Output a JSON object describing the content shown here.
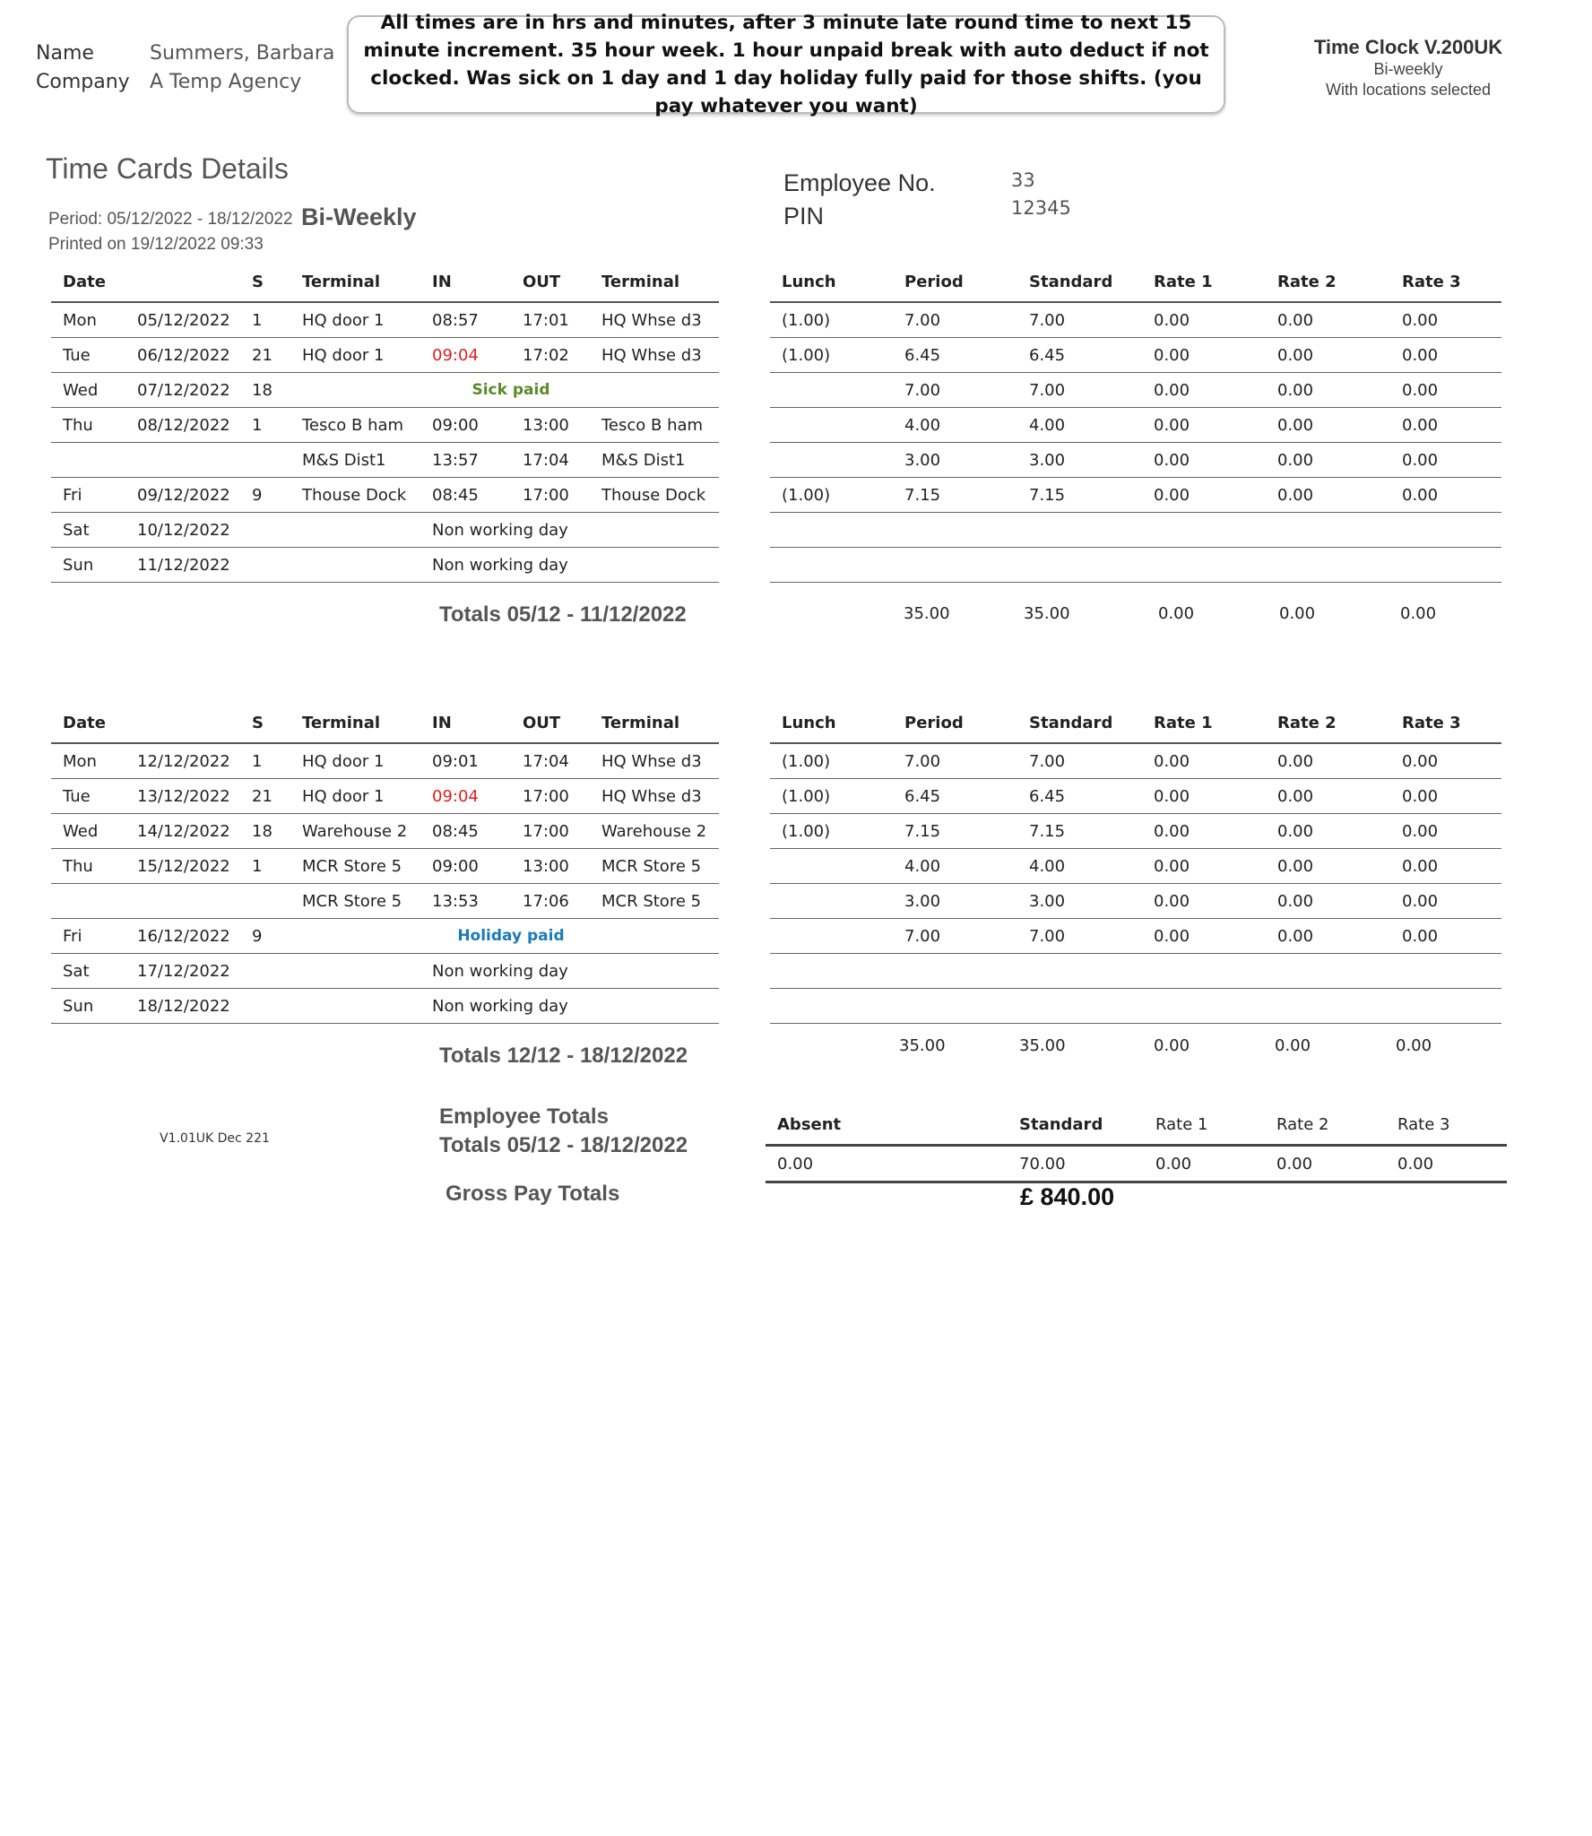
{
  "employee": {
    "name_label": "Name",
    "name": "Summers, Barbara",
    "company_label": "Company",
    "company": "A Temp Agency",
    "employee_no_label": "Employee No.",
    "employee_no": "33",
    "pin_label": "PIN",
    "pin": "12345"
  },
  "note": "All times are in hrs and minutes, after 3 minute late round time to next 15 minute increment. 35 hour week. 1 hour unpaid break with auto deduct if not clocked. Was sick on 1 day and 1 day holiday fully paid for those shifts. (you pay whatever you want)",
  "product": {
    "title": "Time Clock V.200UK",
    "mode": "Bi-weekly",
    "locations": "With locations selected"
  },
  "report": {
    "title": "Time Cards Details",
    "period": "Period: 05/12/2022 - 18/12/2022",
    "frequency": "Bi-Weekly",
    "printed": "Printed on 19/12/2022 09:33",
    "version": "V1.01UK Dec 221"
  },
  "colors": {
    "late": "#e02020",
    "sick": "#5a8a2a",
    "holiday": "#1a7ab8"
  },
  "left_headers": [
    "Date",
    "",
    "S",
    "Terminal",
    "IN",
    "OUT",
    "Terminal"
  ],
  "right_headers": [
    "Lunch",
    "Period",
    "Standard",
    "Rate 1",
    "Rate 2",
    "Rate 3"
  ],
  "weeks": [
    {
      "rows": [
        {
          "day": "Mon",
          "date": "05/12/2022",
          "s": "1",
          "t_in": "HQ door 1",
          "in": "08:57",
          "out": "17:01",
          "t_out": "HQ Whse d3",
          "lunch": "(1.00)",
          "period": "7.00",
          "standard": "7.00",
          "r1": "0.00",
          "r2": "0.00",
          "r3": "0.00"
        },
        {
          "day": "Tue",
          "date": "06/12/2022",
          "s": "21",
          "t_in": "HQ door 1",
          "in": "09:04",
          "late": true,
          "out": "17:02",
          "t_out": "HQ Whse d3",
          "lunch": "(1.00)",
          "period": "6.45",
          "standard": "6.45",
          "r1": "0.00",
          "r2": "0.00",
          "r3": "0.00"
        },
        {
          "day": "Wed",
          "date": "07/12/2022",
          "s": "18",
          "paid": "Sick paid",
          "paid_color": "sick",
          "lunch": "",
          "period": "7.00",
          "standard": "7.00",
          "r1": "0.00",
          "r2": "0.00",
          "r3": "0.00"
        },
        {
          "day": "Thu",
          "date": "08/12/2022",
          "s": "1",
          "t_in": "Tesco B ham",
          "in": "09:00",
          "out": "13:00",
          "t_out": "Tesco B ham",
          "lunch": "",
          "period": "4.00",
          "standard": "4.00",
          "r1": "0.00",
          "r2": "0.00",
          "r3": "0.00"
        },
        {
          "day": "",
          "date": "",
          "s": "",
          "t_in": "M&S Dist1",
          "in": "13:57",
          "out": "17:04",
          "t_out": "M&S Dist1",
          "lunch": "",
          "period": "3.00",
          "standard": "3.00",
          "r1": "0.00",
          "r2": "0.00",
          "r3": "0.00"
        },
        {
          "day": "Fri",
          "date": "09/12/2022",
          "s": "9",
          "t_in": "Thouse Dock",
          "in": "08:45",
          "out": "17:00",
          "t_out": "Thouse Dock",
          "lunch": "(1.00)",
          "period": "7.15",
          "standard": "7.15",
          "r1": "0.00",
          "r2": "0.00",
          "r3": "0.00"
        },
        {
          "day": "Sat",
          "date": "10/12/2022",
          "s": "",
          "nonwork": "Non working day"
        },
        {
          "day": "Sun",
          "date": "11/12/2022",
          "s": "",
          "nonwork": "Non working day"
        }
      ],
      "totals_label": "Totals 05/12 - 11/12/2022",
      "totals": {
        "period": "35.00",
        "standard": "35.00",
        "r1": "0.00",
        "r2": "0.00",
        "r3": "0.00"
      }
    },
    {
      "rows": [
        {
          "day": "Mon",
          "date": "12/12/2022",
          "s": "1",
          "t_in": "HQ door 1",
          "in": "09:01",
          "out": "17:04",
          "t_out": "HQ Whse d3",
          "lunch": "(1.00)",
          "period": "7.00",
          "standard": "7.00",
          "r1": "0.00",
          "r2": "0.00",
          "r3": "0.00"
        },
        {
          "day": "Tue",
          "date": "13/12/2022",
          "s": "21",
          "t_in": "HQ door 1",
          "in": "09:04",
          "late": true,
          "out": "17:00",
          "t_out": "HQ Whse d3",
          "lunch": "(1.00)",
          "period": "6.45",
          "standard": "6.45",
          "r1": "0.00",
          "r2": "0.00",
          "r3": "0.00"
        },
        {
          "day": "Wed",
          "date": "14/12/2022",
          "s": "18",
          "t_in": "Warehouse 2",
          "in": "08:45",
          "out": "17:00",
          "t_out": "Warehouse 2",
          "lunch": "(1.00)",
          "period": "7.15",
          "standard": "7.15",
          "r1": "0.00",
          "r2": "0.00",
          "r3": "0.00"
        },
        {
          "day": "Thu",
          "date": "15/12/2022",
          "s": "1",
          "t_in": "MCR Store 5",
          "in": "09:00",
          "out": "13:00",
          "t_out": "MCR Store 5",
          "lunch": "",
          "period": "4.00",
          "standard": "4.00",
          "r1": "0.00",
          "r2": "0.00",
          "r3": "0.00"
        },
        {
          "day": "",
          "date": "",
          "s": "",
          "t_in": "MCR Store 5",
          "in": "13:53",
          "out": "17:06",
          "t_out": "MCR Store 5",
          "lunch": "",
          "period": "3.00",
          "standard": "3.00",
          "r1": "0.00",
          "r2": "0.00",
          "r3": "0.00"
        },
        {
          "day": "Fri",
          "date": "16/12/2022",
          "s": "9",
          "paid": "Holiday paid",
          "paid_color": "holiday",
          "lunch": "",
          "period": "7.00",
          "standard": "7.00",
          "r1": "0.00",
          "r2": "0.00",
          "r3": "0.00"
        },
        {
          "day": "Sat",
          "date": "17/12/2022",
          "s": "",
          "nonwork": "Non working day"
        },
        {
          "day": "Sun",
          "date": "18/12/2022",
          "s": "",
          "nonwork": "Non working day"
        }
      ],
      "totals_label": "Totals 12/12 - 18/12/2022",
      "totals": {
        "period": "35.00",
        "standard": "35.00",
        "r1": "0.00",
        "r2": "0.00",
        "r3": "0.00"
      }
    }
  ],
  "employee_totals": {
    "title": "Employee Totals",
    "range": "Totals 05/12 - 18/12/2022",
    "headers": {
      "absent": "Absent",
      "standard": "Standard",
      "r1": "Rate 1",
      "r2": "Rate 2",
      "r3": "Rate 3"
    },
    "values": {
      "absent": "0.00",
      "standard": "70.00",
      "r1": "0.00",
      "r2": "0.00",
      "r3": "0.00"
    },
    "gross_label": "Gross Pay Totals",
    "gross": "£ 840.00"
  }
}
